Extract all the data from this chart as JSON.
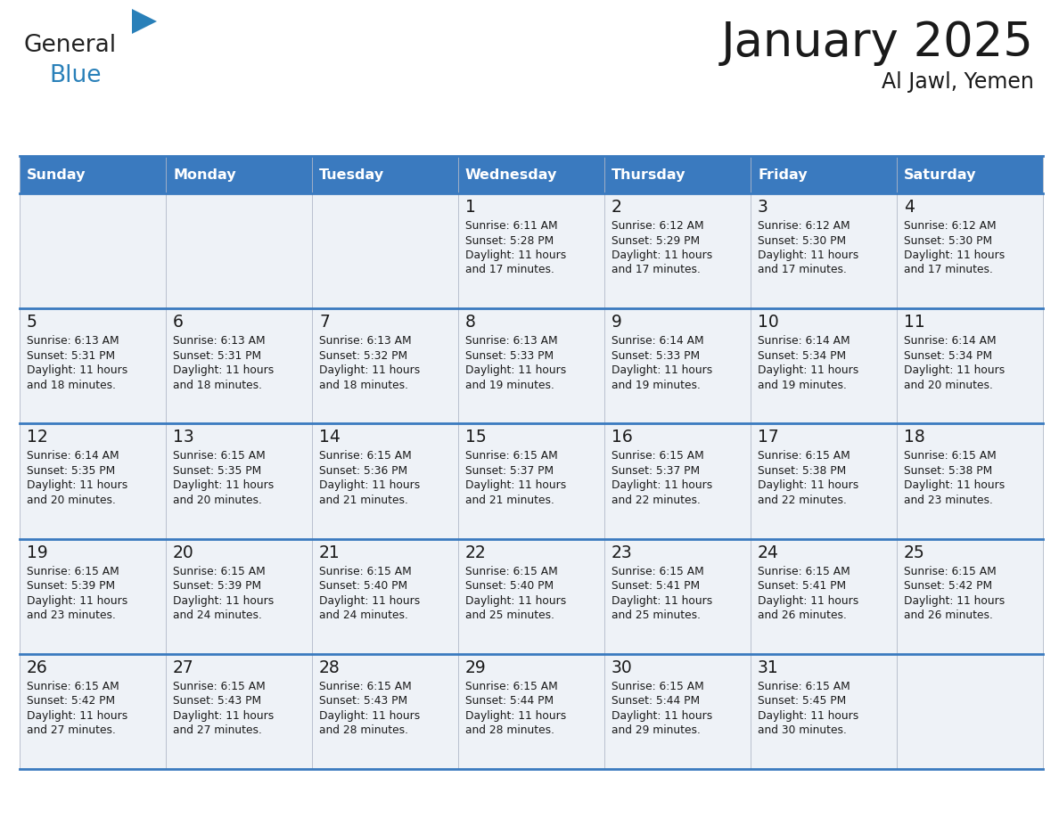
{
  "title": "January 2025",
  "subtitle": "Al Jawl, Yemen",
  "header_color": "#3a7abf",
  "header_text_color": "#ffffff",
  "cell_bg_color": "#eef2f7",
  "border_color": "#3a7abf",
  "text_color": "#1a1a1a",
  "days_of_week": [
    "Sunday",
    "Monday",
    "Tuesday",
    "Wednesday",
    "Thursday",
    "Friday",
    "Saturday"
  ],
  "calendar_data": [
    [
      null,
      null,
      null,
      {
        "day": 1,
        "sunrise": "6:11 AM",
        "sunset": "5:28 PM",
        "daylight": "11 hours and 17 minutes."
      },
      {
        "day": 2,
        "sunrise": "6:12 AM",
        "sunset": "5:29 PM",
        "daylight": "11 hours and 17 minutes."
      },
      {
        "day": 3,
        "sunrise": "6:12 AM",
        "sunset": "5:30 PM",
        "daylight": "11 hours and 17 minutes."
      },
      {
        "day": 4,
        "sunrise": "6:12 AM",
        "sunset": "5:30 PM",
        "daylight": "11 hours and 17 minutes."
      }
    ],
    [
      {
        "day": 5,
        "sunrise": "6:13 AM",
        "sunset": "5:31 PM",
        "daylight": "11 hours and 18 minutes."
      },
      {
        "day": 6,
        "sunrise": "6:13 AM",
        "sunset": "5:31 PM",
        "daylight": "11 hours and 18 minutes."
      },
      {
        "day": 7,
        "sunrise": "6:13 AM",
        "sunset": "5:32 PM",
        "daylight": "11 hours and 18 minutes."
      },
      {
        "day": 8,
        "sunrise": "6:13 AM",
        "sunset": "5:33 PM",
        "daylight": "11 hours and 19 minutes."
      },
      {
        "day": 9,
        "sunrise": "6:14 AM",
        "sunset": "5:33 PM",
        "daylight": "11 hours and 19 minutes."
      },
      {
        "day": 10,
        "sunrise": "6:14 AM",
        "sunset": "5:34 PM",
        "daylight": "11 hours and 19 minutes."
      },
      {
        "day": 11,
        "sunrise": "6:14 AM",
        "sunset": "5:34 PM",
        "daylight": "11 hours and 20 minutes."
      }
    ],
    [
      {
        "day": 12,
        "sunrise": "6:14 AM",
        "sunset": "5:35 PM",
        "daylight": "11 hours and 20 minutes."
      },
      {
        "day": 13,
        "sunrise": "6:15 AM",
        "sunset": "5:35 PM",
        "daylight": "11 hours and 20 minutes."
      },
      {
        "day": 14,
        "sunrise": "6:15 AM",
        "sunset": "5:36 PM",
        "daylight": "11 hours and 21 minutes."
      },
      {
        "day": 15,
        "sunrise": "6:15 AM",
        "sunset": "5:37 PM",
        "daylight": "11 hours and 21 minutes."
      },
      {
        "day": 16,
        "sunrise": "6:15 AM",
        "sunset": "5:37 PM",
        "daylight": "11 hours and 22 minutes."
      },
      {
        "day": 17,
        "sunrise": "6:15 AM",
        "sunset": "5:38 PM",
        "daylight": "11 hours and 22 minutes."
      },
      {
        "day": 18,
        "sunrise": "6:15 AM",
        "sunset": "5:38 PM",
        "daylight": "11 hours and 23 minutes."
      }
    ],
    [
      {
        "day": 19,
        "sunrise": "6:15 AM",
        "sunset": "5:39 PM",
        "daylight": "11 hours and 23 minutes."
      },
      {
        "day": 20,
        "sunrise": "6:15 AM",
        "sunset": "5:39 PM",
        "daylight": "11 hours and 24 minutes."
      },
      {
        "day": 21,
        "sunrise": "6:15 AM",
        "sunset": "5:40 PM",
        "daylight": "11 hours and 24 minutes."
      },
      {
        "day": 22,
        "sunrise": "6:15 AM",
        "sunset": "5:40 PM",
        "daylight": "11 hours and 25 minutes."
      },
      {
        "day": 23,
        "sunrise": "6:15 AM",
        "sunset": "5:41 PM",
        "daylight": "11 hours and 25 minutes."
      },
      {
        "day": 24,
        "sunrise": "6:15 AM",
        "sunset": "5:41 PM",
        "daylight": "11 hours and 26 minutes."
      },
      {
        "day": 25,
        "sunrise": "6:15 AM",
        "sunset": "5:42 PM",
        "daylight": "11 hours and 26 minutes."
      }
    ],
    [
      {
        "day": 26,
        "sunrise": "6:15 AM",
        "sunset": "5:42 PM",
        "daylight": "11 hours and 27 minutes."
      },
      {
        "day": 27,
        "sunrise": "6:15 AM",
        "sunset": "5:43 PM",
        "daylight": "11 hours and 27 minutes."
      },
      {
        "day": 28,
        "sunrise": "6:15 AM",
        "sunset": "5:43 PM",
        "daylight": "11 hours and 28 minutes."
      },
      {
        "day": 29,
        "sunrise": "6:15 AM",
        "sunset": "5:44 PM",
        "daylight": "11 hours and 28 minutes."
      },
      {
        "day": 30,
        "sunrise": "6:15 AM",
        "sunset": "5:44 PM",
        "daylight": "11 hours and 29 minutes."
      },
      {
        "day": 31,
        "sunrise": "6:15 AM",
        "sunset": "5:45 PM",
        "daylight": "11 hours and 30 minutes."
      },
      null
    ]
  ],
  "logo_text1": "General",
  "logo_text2": "Blue",
  "logo_text1_color": "#222222",
  "logo_text2_color": "#2980b9",
  "logo_triangle_color": "#2980b9",
  "fig_width": 11.88,
  "fig_height": 9.18,
  "dpi": 100
}
